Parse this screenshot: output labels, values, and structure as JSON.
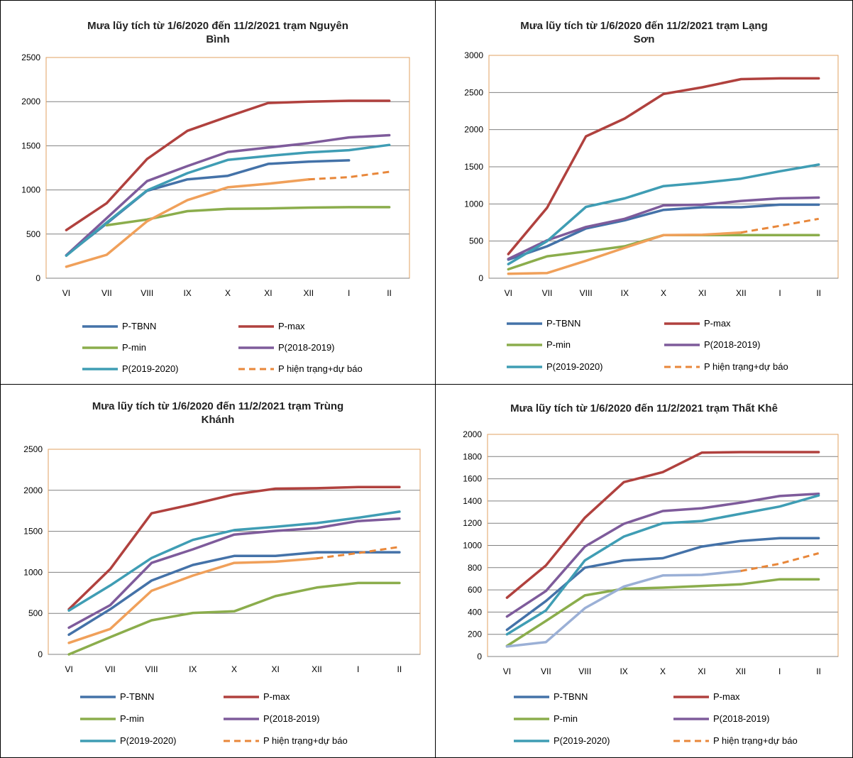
{
  "chart_data": [
    {
      "type": "line",
      "title_lines": [
        "Mưa lũy tích từ 1/6/2020 đến 11/2/2021 trạm Nguyên",
        "Bình"
      ],
      "categories": [
        "VI",
        "VII",
        "VIII",
        "IX",
        "X",
        "XI",
        "XII",
        "I",
        "II"
      ],
      "ylim": [
        0,
        2500
      ],
      "yticks": [
        "0",
        "500",
        "1000",
        "1500",
        "2000",
        "2500"
      ],
      "series": [
        {
          "name": "P-TBNN",
          "color": "#4472a8",
          "dash": false,
          "values": [
            260,
            620,
            990,
            1120,
            1160,
            1295,
            1320,
            1335,
            null
          ]
        },
        {
          "name": "P-max",
          "color": "#b0413e",
          "dash": false,
          "values": [
            545,
            850,
            1350,
            1670,
            1830,
            1985,
            2000,
            2010,
            2010
          ]
        },
        {
          "name": "P-min",
          "color": "#8bad4c",
          "dash": false,
          "values": [
            null,
            600,
            665,
            760,
            785,
            790,
            800,
            805,
            805
          ]
        },
        {
          "name": "P(2018-2019)",
          "color": "#7e5b9b",
          "dash": false,
          "values": [
            260,
            680,
            1100,
            1270,
            1430,
            1480,
            1530,
            1595,
            1620
          ]
        },
        {
          "name": "P(2019-2020)",
          "color": "#3f9db4",
          "dash": false,
          "values": [
            255,
            630,
            995,
            1190,
            1340,
            1385,
            1425,
            1450,
            1510
          ]
        },
        {
          "name": "P hiện trạng+dự báo",
          "color": "#f0a05a",
          "dash": false,
          "values": [
            130,
            265,
            645,
            885,
            1030,
            1070,
            1120,
            null,
            null
          ]
        },
        {
          "name": "",
          "color": "#e8873a",
          "dash": true,
          "values": [
            null,
            null,
            null,
            null,
            null,
            null,
            1120,
            1145,
            1205
          ]
        }
      ]
    },
    {
      "type": "line",
      "title_lines": [
        "Mưa lũy tích từ 1/6/2020 đến 11/2/2021 trạm Lạng",
        "Sơn"
      ],
      "categories": [
        "VI",
        "VII",
        "VIII",
        "IX",
        "X",
        "XI",
        "XII",
        "I",
        "II"
      ],
      "ylim": [
        0,
        3000
      ],
      "yticks": [
        "0",
        "500",
        "1000",
        "1500",
        "2000",
        "2500",
        "3000"
      ],
      "series": [
        {
          "name": "P-TBNN",
          "color": "#4472a8",
          "dash": false,
          "values": [
            250,
            430,
            670,
            780,
            920,
            955,
            955,
            990,
            990
          ]
        },
        {
          "name": "P-max",
          "color": "#b0413e",
          "dash": false,
          "values": [
            325,
            950,
            1910,
            2150,
            2480,
            2570,
            2680,
            2690,
            2690
          ]
        },
        {
          "name": "P-min",
          "color": "#8bad4c",
          "dash": false,
          "values": [
            120,
            295,
            360,
            430,
            580,
            580,
            580,
            580,
            580
          ]
        },
        {
          "name": "P(2018-2019)",
          "color": "#7e5b9b",
          "dash": false,
          "values": [
            260,
            510,
            690,
            800,
            980,
            990,
            1040,
            1075,
            1085
          ]
        },
        {
          "name": "P(2019-2020)",
          "color": "#3f9db4",
          "dash": false,
          "values": [
            190,
            500,
            960,
            1075,
            1240,
            1285,
            1340,
            1440,
            1530
          ]
        },
        {
          "name": "P hiện trạng+dự báo",
          "color": "#f0a05a",
          "dash": false,
          "values": [
            60,
            70,
            235,
            410,
            580,
            585,
            615,
            null,
            null
          ]
        },
        {
          "name": "",
          "color": "#e8873a",
          "dash": true,
          "values": [
            null,
            null,
            null,
            null,
            null,
            null,
            615,
            705,
            800
          ]
        }
      ]
    },
    {
      "type": "line",
      "title_lines": [
        "Mưa lũy tích từ 1/6/2020 đến 11/2/2021 trạm Trùng",
        "Khánh"
      ],
      "categories": [
        "VI",
        "VII",
        "VIII",
        "IX",
        "X",
        "XI",
        "XII",
        "I",
        "II"
      ],
      "ylim": [
        0,
        2500
      ],
      "yticks": [
        "0",
        "500",
        "1000",
        "1500",
        "2000",
        "2500"
      ],
      "series": [
        {
          "name": "P-TBNN",
          "color": "#4472a8",
          "dash": false,
          "values": [
            240,
            550,
            900,
            1090,
            1200,
            1200,
            1245,
            1245,
            1245
          ]
        },
        {
          "name": "P-max",
          "color": "#b0413e",
          "dash": false,
          "values": [
            550,
            1040,
            1720,
            1830,
            1950,
            2020,
            2025,
            2040,
            2040
          ]
        },
        {
          "name": "P-min",
          "color": "#8bad4c",
          "dash": false,
          "values": [
            0,
            210,
            415,
            505,
            525,
            710,
            815,
            870,
            870
          ]
        },
        {
          "name": "P(2018-2019)",
          "color": "#7e5b9b",
          "dash": false,
          "values": [
            325,
            600,
            1115,
            1280,
            1460,
            1505,
            1540,
            1625,
            1655
          ]
        },
        {
          "name": "P(2019-2020)",
          "color": "#3f9db4",
          "dash": false,
          "values": [
            535,
            840,
            1175,
            1395,
            1515,
            1555,
            1600,
            1665,
            1740
          ]
        },
        {
          "name": "P hiện trạng+dự báo",
          "color": "#f0a05a",
          "dash": false,
          "values": [
            140,
            310,
            775,
            960,
            1115,
            1130,
            1170,
            null,
            null
          ]
        },
        {
          "name": "",
          "color": "#e8873a",
          "dash": true,
          "values": [
            null,
            null,
            null,
            null,
            null,
            null,
            1170,
            1235,
            1310
          ]
        }
      ]
    },
    {
      "type": "line",
      "title_lines": [
        "Mưa lũy tích từ 1/6/2020 đến 11/2/2021 trạm Thất Khê"
      ],
      "categories": [
        "VI",
        "VII",
        "VIII",
        "IX",
        "X",
        "XI",
        "XII",
        "I",
        "II"
      ],
      "ylim": [
        0,
        2000
      ],
      "yticks": [
        "0",
        "200",
        "400",
        "600",
        "800",
        "1000",
        "1200",
        "1400",
        "1600",
        "1800",
        "2000"
      ],
      "series": [
        {
          "name": "P-TBNN",
          "color": "#4472a8",
          "dash": false,
          "values": [
            240,
            500,
            800,
            865,
            885,
            990,
            1040,
            1065,
            1065
          ]
        },
        {
          "name": "P-max",
          "color": "#b0413e",
          "dash": false,
          "values": [
            530,
            820,
            1250,
            1570,
            1660,
            1835,
            1840,
            1840,
            1840
          ]
        },
        {
          "name": "P-min",
          "color": "#8bad4c",
          "dash": false,
          "values": [
            95,
            320,
            550,
            610,
            620,
            635,
            650,
            695,
            695
          ]
        },
        {
          "name": "P(2018-2019)",
          "color": "#7e5b9b",
          "dash": false,
          "values": [
            360,
            590,
            990,
            1195,
            1310,
            1335,
            1385,
            1445,
            1465
          ]
        },
        {
          "name": "P(2019-2020)",
          "color": "#3f9db4",
          "dash": false,
          "values": [
            200,
            415,
            865,
            1080,
            1200,
            1220,
            1285,
            1350,
            1450
          ]
        },
        {
          "name": "P hiện trạng+dự báo",
          "color": "#9bb0d6",
          "dash": false,
          "values": [
            90,
            130,
            435,
            630,
            730,
            735,
            770,
            null,
            null
          ]
        },
        {
          "name": "",
          "color": "#e8873a",
          "dash": true,
          "values": [
            null,
            null,
            null,
            null,
            null,
            null,
            770,
            835,
            930
          ]
        }
      ]
    }
  ],
  "legend": {
    "entries": [
      {
        "label": "P-TBNN",
        "color": "#4472a8",
        "dash": false
      },
      {
        "label": "P-max",
        "color": "#b0413e",
        "dash": false
      },
      {
        "label": "P-min",
        "color": "#8bad4c",
        "dash": false
      },
      {
        "label": "P(2018-2019)",
        "color": "#7e5b9b",
        "dash": false
      },
      {
        "label": "P(2019-2020)",
        "color": "#3f9db4",
        "dash": false
      },
      {
        "label": "P hiện trạng+dự báo",
        "color": "#e8873a",
        "dash": true
      }
    ]
  },
  "colors": {
    "plot_border": "#e0a060",
    "gridline": "#808080",
    "axis": "#808080"
  }
}
